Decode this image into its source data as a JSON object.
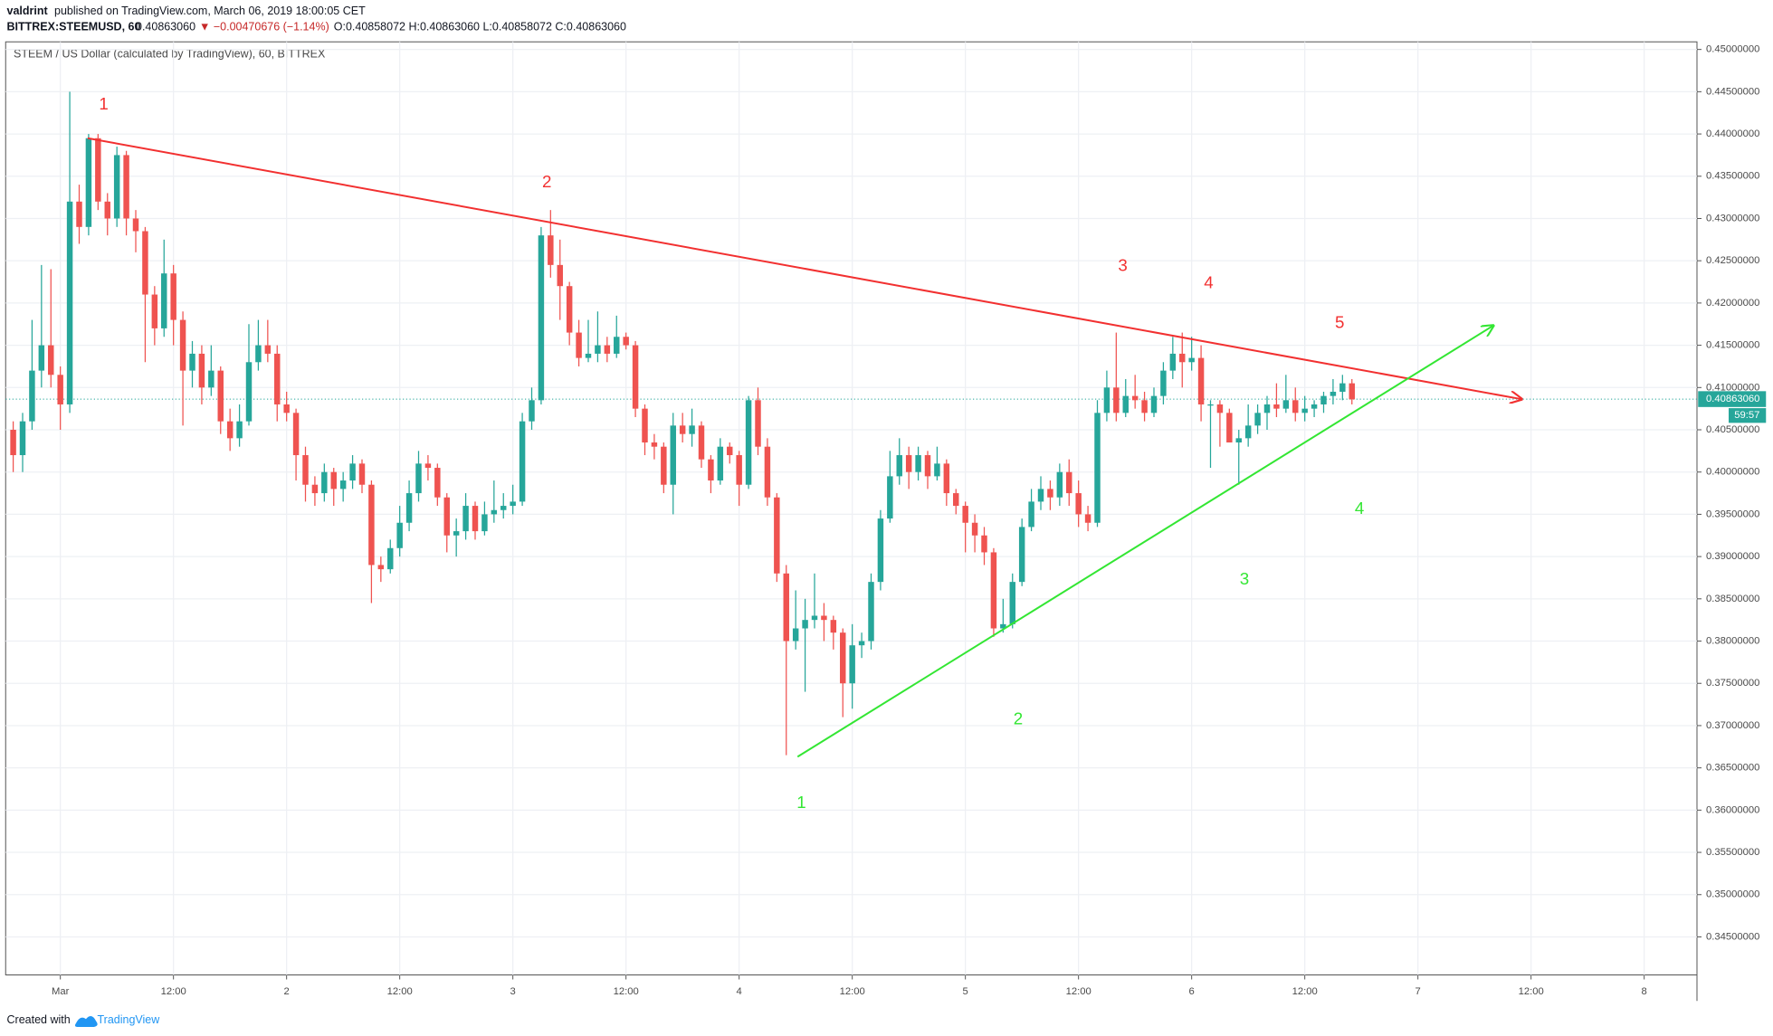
{
  "header": {
    "author": "valdrint",
    "published": "published on TradingView.com, March 06, 2019 18:00:05 CET",
    "symbol": "BITTREX:STEEMUSD, 60",
    "price": "0.40863060",
    "change": "▼ −0.00470676 (−1.14%)",
    "ohlc": "O:0.40858072 H:0.40863060 L:0.40858072 C:0.40863060"
  },
  "footer": {
    "created": "Created with",
    "brand": "TradingView"
  },
  "chart_data": {
    "type": "candlestick",
    "title": "STEEM / US Dollar (calculated by TradingView), 60, BITTREX",
    "up_color": "#26a69a",
    "down_color": "#ef5350",
    "grid": true,
    "xlim": [
      -5.8,
      173.6
    ],
    "ylim": [
      0.3405,
      0.4509
    ],
    "xticks": [
      {
        "value": 0,
        "label": "Mar"
      },
      {
        "value": 12,
        "label": "12:00"
      },
      {
        "value": 24,
        "label": "2"
      },
      {
        "value": 36,
        "label": "12:00"
      },
      {
        "value": 48,
        "label": "3"
      },
      {
        "value": 60,
        "label": "12:00"
      },
      {
        "value": 72,
        "label": "4"
      },
      {
        "value": 84,
        "label": "12:00"
      },
      {
        "value": 96,
        "label": "5"
      },
      {
        "value": 108,
        "label": "12:00"
      },
      {
        "value": 120,
        "label": "6"
      },
      {
        "value": 132,
        "label": "12:00"
      },
      {
        "value": 144,
        "label": "7"
      },
      {
        "value": 156,
        "label": "12:00"
      },
      {
        "value": 168,
        "label": "8"
      }
    ],
    "yticks": [
      {
        "value": 0.345,
        "label": "0.34500000"
      },
      {
        "value": 0.35,
        "label": "0.35000000"
      },
      {
        "value": 0.355,
        "label": "0.35500000"
      },
      {
        "value": 0.36,
        "label": "0.36000000"
      },
      {
        "value": 0.365,
        "label": "0.36500000"
      },
      {
        "value": 0.37,
        "label": "0.37000000"
      },
      {
        "value": 0.375,
        "label": "0.37500000"
      },
      {
        "value": 0.38,
        "label": "0.38000000"
      },
      {
        "value": 0.385,
        "label": "0.38500000"
      },
      {
        "value": 0.39,
        "label": "0.39000000"
      },
      {
        "value": 0.395,
        "label": "0.39500000"
      },
      {
        "value": 0.4,
        "label": "0.40000000"
      },
      {
        "value": 0.405,
        "label": "0.40500000"
      },
      {
        "value": 0.41,
        "label": "0.41000000"
      },
      {
        "value": 0.415,
        "label": "0.41500000"
      },
      {
        "value": 0.42,
        "label": "0.42000000"
      },
      {
        "value": 0.425,
        "label": "0.42500000"
      },
      {
        "value": 0.43,
        "label": "0.43000000"
      },
      {
        "value": 0.435,
        "label": "0.43500000"
      },
      {
        "value": 0.44,
        "label": "0.44000000"
      },
      {
        "value": 0.445,
        "label": "0.44500000"
      },
      {
        "value": 0.45,
        "label": "0.45000000"
      }
    ],
    "last_price": {
      "value": 0.4086306,
      "label": "0.40863060"
    },
    "countdown": "59:57",
    "x": [
      -5,
      -4,
      -3,
      -2,
      -1,
      0,
      1,
      2,
      3,
      4,
      5,
      6,
      7,
      8,
      9,
      10,
      11,
      12,
      13,
      14,
      15,
      16,
      17,
      18,
      19,
      20,
      21,
      22,
      23,
      24,
      25,
      26,
      27,
      28,
      29,
      30,
      31,
      32,
      33,
      34,
      35,
      36,
      37,
      38,
      39,
      40,
      41,
      42,
      43,
      44,
      45,
      46,
      47,
      48,
      49,
      50,
      51,
      52,
      53,
      54,
      55,
      56,
      57,
      58,
      59,
      60,
      61,
      62,
      63,
      64,
      65,
      66,
      67,
      68,
      69,
      70,
      71,
      72,
      73,
      74,
      75,
      76,
      77,
      78,
      79,
      80,
      81,
      82,
      83,
      84,
      85,
      86,
      87,
      88,
      89,
      90,
      91,
      92,
      93,
      94,
      95,
      96,
      97,
      98,
      99,
      100,
      101,
      102,
      103,
      104,
      105,
      106,
      107,
      108,
      109,
      110,
      111,
      112,
      113,
      114,
      115,
      116,
      117,
      118,
      119,
      120,
      121,
      122,
      123,
      124,
      125,
      126,
      127,
      128,
      129,
      130,
      131,
      132,
      133,
      134,
      135,
      136,
      137
    ],
    "candles": [
      [
        0.405,
        0.406,
        0.4,
        0.402
      ],
      [
        0.402,
        0.407,
        0.4,
        0.406
      ],
      [
        0.406,
        0.418,
        0.405,
        0.412
      ],
      [
        0.412,
        0.4245,
        0.41,
        0.415
      ],
      [
        0.415,
        0.424,
        0.41,
        0.4115
      ],
      [
        0.4115,
        0.4125,
        0.405,
        0.408
      ],
      [
        0.408,
        0.445,
        0.407,
        0.432
      ],
      [
        0.432,
        0.434,
        0.427,
        0.429
      ],
      [
        0.429,
        0.44,
        0.428,
        0.4395
      ],
      [
        0.4395,
        0.44,
        0.431,
        0.432
      ],
      [
        0.432,
        0.433,
        0.428,
        0.43
      ],
      [
        0.43,
        0.4385,
        0.429,
        0.4375
      ],
      [
        0.4375,
        0.438,
        0.428,
        0.43
      ],
      [
        0.43,
        0.431,
        0.426,
        0.4285
      ],
      [
        0.4285,
        0.429,
        0.413,
        0.421
      ],
      [
        0.421,
        0.422,
        0.415,
        0.417
      ],
      [
        0.417,
        0.4275,
        0.416,
        0.4235
      ],
      [
        0.4235,
        0.4245,
        0.415,
        0.418
      ],
      [
        0.418,
        0.419,
        0.4055,
        0.412
      ],
      [
        0.412,
        0.4155,
        0.41,
        0.414
      ],
      [
        0.414,
        0.415,
        0.408,
        0.41
      ],
      [
        0.41,
        0.415,
        0.409,
        0.412
      ],
      [
        0.412,
        0.4125,
        0.4045,
        0.406
      ],
      [
        0.406,
        0.4075,
        0.4025,
        0.404
      ],
      [
        0.404,
        0.408,
        0.403,
        0.406
      ],
      [
        0.406,
        0.4175,
        0.4055,
        0.413
      ],
      [
        0.413,
        0.418,
        0.412,
        0.415
      ],
      [
        0.415,
        0.418,
        0.413,
        0.414
      ],
      [
        0.414,
        0.415,
        0.406,
        0.408
      ],
      [
        0.408,
        0.4095,
        0.406,
        0.407
      ],
      [
        0.407,
        0.4075,
        0.399,
        0.402
      ],
      [
        0.402,
        0.403,
        0.3965,
        0.3985
      ],
      [
        0.3985,
        0.3995,
        0.396,
        0.3975
      ],
      [
        0.3975,
        0.401,
        0.3965,
        0.4
      ],
      [
        0.4,
        0.4005,
        0.396,
        0.398
      ],
      [
        0.398,
        0.4,
        0.3965,
        0.399
      ],
      [
        0.399,
        0.402,
        0.398,
        0.401
      ],
      [
        0.401,
        0.4015,
        0.3975,
        0.3985
      ],
      [
        0.3985,
        0.399,
        0.3845,
        0.389
      ],
      [
        0.389,
        0.39,
        0.387,
        0.3885
      ],
      [
        0.3885,
        0.392,
        0.388,
        0.391
      ],
      [
        0.391,
        0.396,
        0.39,
        0.394
      ],
      [
        0.394,
        0.399,
        0.393,
        0.3975
      ],
      [
        0.3975,
        0.4025,
        0.3965,
        0.401
      ],
      [
        0.401,
        0.402,
        0.399,
        0.4005
      ],
      [
        0.4005,
        0.401,
        0.396,
        0.397
      ],
      [
        0.397,
        0.3975,
        0.3905,
        0.3925
      ],
      [
        0.3925,
        0.3945,
        0.39,
        0.393
      ],
      [
        0.393,
        0.3975,
        0.392,
        0.396
      ],
      [
        0.396,
        0.3965,
        0.392,
        0.393
      ],
      [
        0.393,
        0.3965,
        0.3925,
        0.395
      ],
      [
        0.395,
        0.399,
        0.394,
        0.3955
      ],
      [
        0.3955,
        0.3975,
        0.3945,
        0.396
      ],
      [
        0.396,
        0.3985,
        0.395,
        0.3965
      ],
      [
        0.3965,
        0.407,
        0.396,
        0.406
      ],
      [
        0.406,
        0.41,
        0.405,
        0.4085
      ],
      [
        0.4085,
        0.429,
        0.408,
        0.428
      ],
      [
        0.428,
        0.431,
        0.423,
        0.4245
      ],
      [
        0.4245,
        0.4275,
        0.418,
        0.422
      ],
      [
        0.422,
        0.4225,
        0.415,
        0.4165
      ],
      [
        0.4165,
        0.418,
        0.4125,
        0.4135
      ],
      [
        0.4135,
        0.418,
        0.413,
        0.414
      ],
      [
        0.414,
        0.419,
        0.413,
        0.415
      ],
      [
        0.415,
        0.416,
        0.413,
        0.414
      ],
      [
        0.414,
        0.4185,
        0.4135,
        0.416
      ],
      [
        0.416,
        0.4165,
        0.4145,
        0.415
      ],
      [
        0.415,
        0.4155,
        0.4065,
        0.4075
      ],
      [
        0.4075,
        0.408,
        0.402,
        0.4035
      ],
      [
        0.4035,
        0.4045,
        0.4015,
        0.403
      ],
      [
        0.403,
        0.4035,
        0.3975,
        0.3985
      ],
      [
        0.3985,
        0.407,
        0.395,
        0.4055
      ],
      [
        0.4055,
        0.407,
        0.4035,
        0.4045
      ],
      [
        0.4045,
        0.4075,
        0.403,
        0.4055
      ],
      [
        0.4055,
        0.406,
        0.4005,
        0.4015
      ],
      [
        0.4015,
        0.402,
        0.3975,
        0.399
      ],
      [
        0.399,
        0.404,
        0.3985,
        0.403
      ],
      [
        0.403,
        0.4035,
        0.401,
        0.402
      ],
      [
        0.402,
        0.4025,
        0.396,
        0.3985
      ],
      [
        0.3985,
        0.409,
        0.398,
        0.4085
      ],
      [
        0.4085,
        0.41,
        0.402,
        0.403
      ],
      [
        0.403,
        0.404,
        0.396,
        0.397
      ],
      [
        0.397,
        0.3975,
        0.387,
        0.388
      ],
      [
        0.388,
        0.389,
        0.3665,
        0.38
      ],
      [
        0.38,
        0.386,
        0.379,
        0.3815
      ],
      [
        0.3815,
        0.385,
        0.374,
        0.3825
      ],
      [
        0.3825,
        0.388,
        0.3815,
        0.383
      ],
      [
        0.383,
        0.3845,
        0.38,
        0.3825
      ],
      [
        0.3825,
        0.383,
        0.379,
        0.381
      ],
      [
        0.381,
        0.3815,
        0.371,
        0.375
      ],
      [
        0.375,
        0.382,
        0.372,
        0.3795
      ],
      [
        0.3795,
        0.381,
        0.378,
        0.38
      ],
      [
        0.38,
        0.388,
        0.379,
        0.387
      ],
      [
        0.387,
        0.3955,
        0.386,
        0.3945
      ],
      [
        0.3945,
        0.4025,
        0.394,
        0.3995
      ],
      [
        0.3995,
        0.404,
        0.3985,
        0.402
      ],
      [
        0.402,
        0.403,
        0.398,
        0.4
      ],
      [
        0.4,
        0.403,
        0.399,
        0.402
      ],
      [
        0.402,
        0.4025,
        0.398,
        0.3995
      ],
      [
        0.3995,
        0.403,
        0.399,
        0.401
      ],
      [
        0.401,
        0.4015,
        0.396,
        0.3975
      ],
      [
        0.3975,
        0.398,
        0.395,
        0.396
      ],
      [
        0.396,
        0.3965,
        0.3905,
        0.394
      ],
      [
        0.394,
        0.395,
        0.3905,
        0.3925
      ],
      [
        0.3925,
        0.3935,
        0.389,
        0.3905
      ],
      [
        0.3905,
        0.391,
        0.3805,
        0.3815
      ],
      [
        0.3815,
        0.385,
        0.381,
        0.382
      ],
      [
        0.382,
        0.388,
        0.3815,
        0.387
      ],
      [
        0.387,
        0.3945,
        0.3865,
        0.3935
      ],
      [
        0.3935,
        0.398,
        0.393,
        0.3965
      ],
      [
        0.3965,
        0.3995,
        0.3955,
        0.398
      ],
      [
        0.398,
        0.399,
        0.3955,
        0.397
      ],
      [
        0.397,
        0.401,
        0.396,
        0.4
      ],
      [
        0.4,
        0.4015,
        0.396,
        0.3975
      ],
      [
        0.3975,
        0.399,
        0.3935,
        0.395
      ],
      [
        0.395,
        0.396,
        0.393,
        0.394
      ],
      [
        0.394,
        0.4085,
        0.3935,
        0.407
      ],
      [
        0.407,
        0.412,
        0.406,
        0.41
      ],
      [
        0.41,
        0.4165,
        0.406,
        0.407
      ],
      [
        0.407,
        0.411,
        0.4065,
        0.409
      ],
      [
        0.409,
        0.4115,
        0.4075,
        0.4085
      ],
      [
        0.4085,
        0.4095,
        0.406,
        0.407
      ],
      [
        0.407,
        0.41,
        0.4065,
        0.409
      ],
      [
        0.409,
        0.413,
        0.408,
        0.412
      ],
      [
        0.412,
        0.416,
        0.411,
        0.414
      ],
      [
        0.414,
        0.4165,
        0.41,
        0.413
      ],
      [
        0.413,
        0.416,
        0.412,
        0.4135
      ],
      [
        0.4135,
        0.415,
        0.406,
        0.408
      ],
      [
        0.408,
        0.4085,
        0.4005,
        0.408
      ],
      [
        0.408,
        0.4085,
        0.403,
        0.407
      ],
      [
        0.407,
        0.4075,
        0.4035,
        0.4035
      ],
      [
        0.4035,
        0.405,
        0.3985,
        0.404
      ],
      [
        0.404,
        0.408,
        0.403,
        0.4055
      ],
      [
        0.4055,
        0.408,
        0.4045,
        0.407
      ],
      [
        0.407,
        0.409,
        0.405,
        0.408
      ],
      [
        0.408,
        0.4105,
        0.4065,
        0.4075
      ],
      [
        0.4075,
        0.4115,
        0.407,
        0.4085
      ],
      [
        0.4085,
        0.41,
        0.406,
        0.407
      ],
      [
        0.407,
        0.409,
        0.406,
        0.4075
      ],
      [
        0.4075,
        0.4085,
        0.4065,
        0.408
      ],
      [
        0.408,
        0.4095,
        0.407,
        0.409
      ],
      [
        0.409,
        0.411,
        0.408,
        0.4095
      ],
      [
        0.4095,
        0.4115,
        0.4085,
        0.4105
      ],
      [
        0.4105,
        0.411,
        0.408,
        0.4086
      ]
    ],
    "trendlines": [
      {
        "color": "#f23030",
        "points": [
          [
            2.9,
            0.4395
          ],
          [
            155,
            0.40862
          ]
        ]
      },
      {
        "color": "#33e633",
        "points": [
          [
            78.2,
            0.36631
          ],
          [
            152,
            0.41733
          ]
        ]
      }
    ],
    "annotations": [
      {
        "text": "1",
        "x": 4.6,
        "y": 0.44344,
        "color": "#f23030"
      },
      {
        "text": "2",
        "x": 51.6,
        "y": 0.4342,
        "color": "#f23030"
      },
      {
        "text": "3",
        "x": 112.7,
        "y": 0.4243,
        "color": "#f23030"
      },
      {
        "text": "4",
        "x": 121.8,
        "y": 0.4223,
        "color": "#f23030"
      },
      {
        "text": "5",
        "x": 135.7,
        "y": 0.4176,
        "color": "#f23030"
      },
      {
        "text": "1",
        "x": 78.6,
        "y": 0.3608,
        "color": "#33e633"
      },
      {
        "text": "2",
        "x": 101.6,
        "y": 0.3707,
        "color": "#33e633"
      },
      {
        "text": "3",
        "x": 125.6,
        "y": 0.3872,
        "color": "#33e633"
      },
      {
        "text": "4",
        "x": 137.8,
        "y": 0.3956,
        "color": "#33e633"
      }
    ]
  }
}
